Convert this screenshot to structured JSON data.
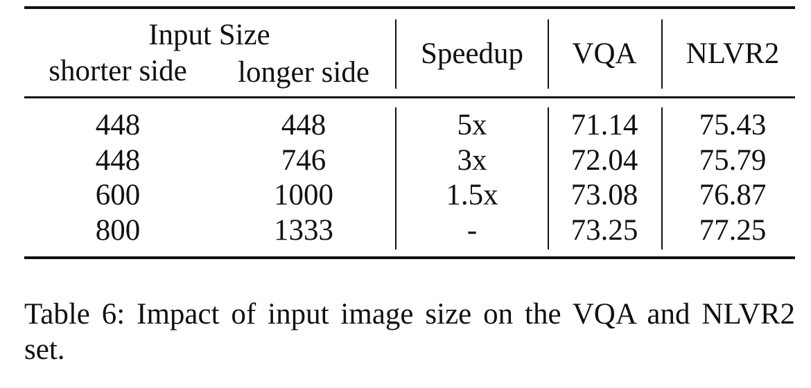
{
  "table": {
    "header": {
      "group_label": "Input Size",
      "sub_columns": [
        "shorter side",
        "longer side"
      ],
      "columns": [
        "Speedup",
        "VQA",
        "NLVR2"
      ]
    },
    "rows": [
      {
        "shorter": "448",
        "longer": "448",
        "speedup": "5x",
        "vqa": "71.14",
        "nlvr2": "75.43"
      },
      {
        "shorter": "448",
        "longer": "746",
        "speedup": "3x",
        "vqa": "72.04",
        "nlvr2": "75.79"
      },
      {
        "shorter": "600",
        "longer": "1000",
        "speedup": "1.5x",
        "vqa": "73.08",
        "nlvr2": "76.87"
      },
      {
        "shorter": "800",
        "longer": "1333",
        "speedup": "-",
        "vqa": "73.25",
        "nlvr2": "77.25"
      }
    ]
  },
  "caption": "Table 6: Impact of input image size on the VQA and NLVR2 set."
}
